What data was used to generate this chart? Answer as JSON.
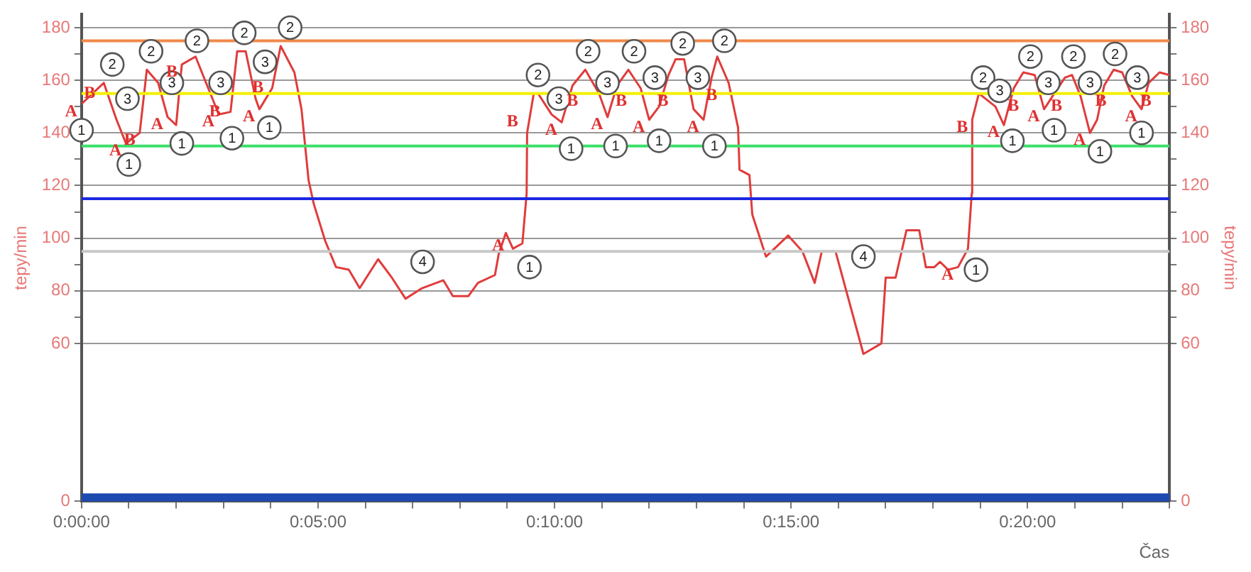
{
  "chart_data": {
    "type": "line",
    "xlabel": "Čas",
    "ylabel": "tepy/min",
    "y2label": "tepy/min",
    "xlim": [
      0,
      23
    ],
    "xticks": [
      {
        "value": 0,
        "label": "0:00:00"
      },
      {
        "value": 1,
        "label": null
      },
      {
        "value": 2,
        "label": null
      },
      {
        "value": 3,
        "label": null
      },
      {
        "value": 4,
        "label": null
      },
      {
        "value": 5,
        "label": "0:05:00"
      },
      {
        "value": 6,
        "label": null
      },
      {
        "value": 7,
        "label": null
      },
      {
        "value": 8,
        "label": null
      },
      {
        "value": 9,
        "label": null
      },
      {
        "value": 10,
        "label": "0:10:00"
      },
      {
        "value": 11,
        "label": null
      },
      {
        "value": 12,
        "label": null
      },
      {
        "value": 13,
        "label": null
      },
      {
        "value": 14,
        "label": null
      },
      {
        "value": 15,
        "label": "0:15:00"
      },
      {
        "value": 16,
        "label": null
      },
      {
        "value": 17,
        "label": null
      },
      {
        "value": 18,
        "label": null
      },
      {
        "value": 19,
        "label": null
      },
      {
        "value": 20,
        "label": "0:20:00"
      },
      {
        "value": 21,
        "label": null
      },
      {
        "value": 22,
        "label": null
      },
      {
        "value": 23,
        "label": null
      }
    ],
    "ylim": [
      0,
      185
    ],
    "yticks": [
      0,
      60,
      {
        "value": 70,
        "label": null
      },
      80,
      {
        "value": 90,
        "label": null
      },
      100,
      {
        "value": 110,
        "label": null
      },
      120,
      {
        "value": 130,
        "label": null
      },
      140,
      {
        "value": 150,
        "label": null
      },
      160,
      {
        "value": 170,
        "label": null
      },
      180
    ],
    "y2lim": [
      0,
      185
    ],
    "y2ticks": [
      0,
      60,
      {
        "value": 70,
        "label": null
      },
      80,
      {
        "value": 90,
        "label": null
      },
      100,
      {
        "value": 110,
        "label": null
      },
      120,
      {
        "value": 130,
        "label": null
      },
      140,
      {
        "value": 150,
        "label": null
      },
      160,
      {
        "value": 170,
        "label": null
      },
      180
    ],
    "grid": "y",
    "legend": false,
    "marker": "none",
    "series": [
      {
        "color": "#e03c3c",
        "x": [
          0,
          0.47,
          0.74,
          0.94,
          1.23,
          1.38,
          1.62,
          1.82,
          2.0,
          2.12,
          2.41,
          2.79,
          2.9,
          3.15,
          3.29,
          3.47,
          3.68,
          3.76,
          4.03,
          4.21,
          4.5,
          4.65,
          4.8,
          4.91,
          5.15,
          5.38,
          5.65,
          5.88,
          6.27,
          6.56,
          6.85,
          7.2,
          7.65,
          7.85,
          8.18,
          8.38,
          8.74,
          8.82,
          8.97,
          9.12,
          9.32,
          9.41,
          9.42,
          9.56,
          9.65,
          9.94,
          10.15,
          10.38,
          10.65,
          10.94,
          11.12,
          11.32,
          11.56,
          11.82,
          12.0,
          12.21,
          12.41,
          12.56,
          12.74,
          12.94,
          13.15,
          13.32,
          13.44,
          13.68,
          13.88,
          13.91,
          14.12,
          14.18,
          14.47,
          14.94,
          15.24,
          15.5,
          15.65,
          15.94,
          16.53,
          16.91,
          17.0,
          17.21,
          17.44,
          17.71,
          17.85,
          18.03,
          18.15,
          18.32,
          18.53,
          18.74,
          18.82,
          18.83,
          18.97,
          19.32,
          19.5,
          19.71,
          19.91,
          20.15,
          20.35,
          20.53,
          20.79,
          20.94,
          21.12,
          21.32,
          21.47,
          21.62,
          21.82,
          22.0,
          22.21,
          22.41,
          22.56,
          22.79,
          23.0
        ],
        "values": [
          151,
          159,
          145,
          136,
          140,
          164,
          159,
          146,
          143,
          166,
          169,
          152,
          147,
          148,
          171,
          171,
          153,
          149,
          157,
          173,
          163,
          149,
          122,
          113,
          99,
          89,
          88,
          81,
          92,
          85,
          77,
          81,
          84,
          78,
          78,
          83,
          86,
          94,
          102,
          96,
          98,
          117,
          140,
          155,
          155,
          147,
          144,
          158,
          164,
          155,
          146,
          158,
          164,
          157,
          145,
          150,
          162,
          168,
          168,
          149,
          145,
          161,
          169,
          159,
          142,
          126,
          124,
          109,
          93,
          101,
          95,
          83,
          95,
          95,
          56,
          60,
          85,
          85,
          103,
          103,
          89,
          89,
          91,
          88,
          89,
          96,
          117,
          145,
          155,
          150,
          143,
          157,
          163,
          162,
          149,
          154,
          161,
          162,
          154,
          140,
          145,
          158,
          164,
          163,
          154,
          149,
          159,
          163,
          162
        ]
      }
    ],
    "ref_lines": [
      {
        "axis": "y",
        "value": 175,
        "color": "#f08848"
      },
      {
        "axis": "y",
        "value": 155,
        "color": "#f4f000"
      },
      {
        "axis": "y",
        "value": 135,
        "color": "#3ce06a"
      },
      {
        "axis": "y",
        "value": 115,
        "color": "#1c28e0"
      },
      {
        "axis": "y",
        "value": 95,
        "color": "#c8c8c8"
      }
    ],
    "bands": [
      {
        "axis": "y",
        "from": 0,
        "to": 3,
        "color": "#1c4ab0"
      }
    ],
    "annotations": [
      {
        "text": "A",
        "x": 0,
        "y": 151
      },
      {
        "text": "1",
        "x": 0,
        "y": 141
      },
      {
        "text": "B",
        "x": 0.38,
        "y": 158
      },
      {
        "text": "2",
        "x": 0.65,
        "y": 166
      },
      {
        "text": "3",
        "x": 0.97,
        "y": 153
      },
      {
        "text": "A",
        "x": 0.94,
        "y": 136
      },
      {
        "text": "B",
        "x": 1.23,
        "y": 140
      },
      {
        "text": "1",
        "x": 1.0,
        "y": 128
      },
      {
        "text": "2",
        "x": 1.47,
        "y": 171
      },
      {
        "text": "3",
        "x": 1.91,
        "y": 159
      },
      {
        "text": "A",
        "x": 1.82,
        "y": 146
      },
      {
        "text": "B",
        "x": 2.12,
        "y": 166
      },
      {
        "text": "1",
        "x": 2.12,
        "y": 136
      },
      {
        "text": "2",
        "x": 2.44,
        "y": 175
      },
      {
        "text": "3",
        "x": 2.94,
        "y": 159
      },
      {
        "text": "B",
        "x": 3.03,
        "y": 151
      },
      {
        "text": "A",
        "x": 2.9,
        "y": 147
      },
      {
        "text": "1",
        "x": 3.18,
        "y": 138
      },
      {
        "text": "2",
        "x": 3.44,
        "y": 178
      },
      {
        "text": "3",
        "x": 3.88,
        "y": 167
      },
      {
        "text": "B",
        "x": 3.94,
        "y": 160
      },
      {
        "text": "A",
        "x": 3.76,
        "y": 149
      },
      {
        "text": "1",
        "x": 3.97,
        "y": 142
      },
      {
        "text": "2",
        "x": 4.41,
        "y": 180
      },
      {
        "text": "4",
        "x": 7.21,
        "y": 91
      },
      {
        "text": "A",
        "x": 9.03,
        "y": 100
      },
      {
        "text": "1",
        "x": 9.47,
        "y": 89
      },
      {
        "text": "2",
        "x": 9.65,
        "y": 162
      },
      {
        "text": "3",
        "x": 10.09,
        "y": 153
      },
      {
        "text": "B",
        "x": 9.32,
        "y": 147
      },
      {
        "text": "A",
        "x": 10.15,
        "y": 144
      },
      {
        "text": "1",
        "x": 10.35,
        "y": 134
      },
      {
        "text": "B",
        "x": 10.59,
        "y": 155
      },
      {
        "text": "2",
        "x": 10.71,
        "y": 171
      },
      {
        "text": "3",
        "x": 11.12,
        "y": 159
      },
      {
        "text": "A",
        "x": 11.12,
        "y": 146
      },
      {
        "text": "1",
        "x": 11.29,
        "y": 135
      },
      {
        "text": "B",
        "x": 11.62,
        "y": 155
      },
      {
        "text": "2",
        "x": 11.68,
        "y": 171
      },
      {
        "text": "3",
        "x": 12.12,
        "y": 161
      },
      {
        "text": "A",
        "x": 12.0,
        "y": 145
      },
      {
        "text": "1",
        "x": 12.21,
        "y": 137
      },
      {
        "text": "B",
        "x": 12.5,
        "y": 155
      },
      {
        "text": "2",
        "x": 12.71,
        "y": 174
      },
      {
        "text": "3",
        "x": 13.03,
        "y": 161
      },
      {
        "text": "A",
        "x": 13.15,
        "y": 145
      },
      {
        "text": "1",
        "x": 13.38,
        "y": 135
      },
      {
        "text": "B",
        "x": 13.53,
        "y": 157
      },
      {
        "text": "2",
        "x": 13.59,
        "y": 175
      },
      {
        "text": "4",
        "x": 16.53,
        "y": 93
      },
      {
        "text": "A",
        "x": 18.53,
        "y": 89
      },
      {
        "text": "1",
        "x": 18.91,
        "y": 88
      },
      {
        "text": "B",
        "x": 18.83,
        "y": 145
      },
      {
        "text": "2",
        "x": 19.06,
        "y": 161
      },
      {
        "text": "3",
        "x": 19.41,
        "y": 156
      },
      {
        "text": "A",
        "x": 19.5,
        "y": 143
      },
      {
        "text": "1",
        "x": 19.68,
        "y": 137
      },
      {
        "text": "B",
        "x": 19.91,
        "y": 153
      },
      {
        "text": "2",
        "x": 20.06,
        "y": 169
      },
      {
        "text": "3",
        "x": 20.44,
        "y": 159
      },
      {
        "text": "A",
        "x": 20.35,
        "y": 149
      },
      {
        "text": "1",
        "x": 20.56,
        "y": 141
      },
      {
        "text": "B",
        "x": 20.82,
        "y": 153
      },
      {
        "text": "2",
        "x": 20.97,
        "y": 169
      },
      {
        "text": "3",
        "x": 21.32,
        "y": 159
      },
      {
        "text": "A",
        "x": 21.32,
        "y": 140
      },
      {
        "text": "1",
        "x": 21.53,
        "y": 133
      },
      {
        "text": "B",
        "x": 21.76,
        "y": 155
      },
      {
        "text": "2",
        "x": 21.85,
        "y": 170
      },
      {
        "text": "3",
        "x": 22.32,
        "y": 161
      },
      {
        "text": "A",
        "x": 22.41,
        "y": 149
      },
      {
        "text": "1",
        "x": 22.41,
        "y": 140
      },
      {
        "text": "B",
        "x": 22.71,
        "y": 155
      }
    ]
  }
}
